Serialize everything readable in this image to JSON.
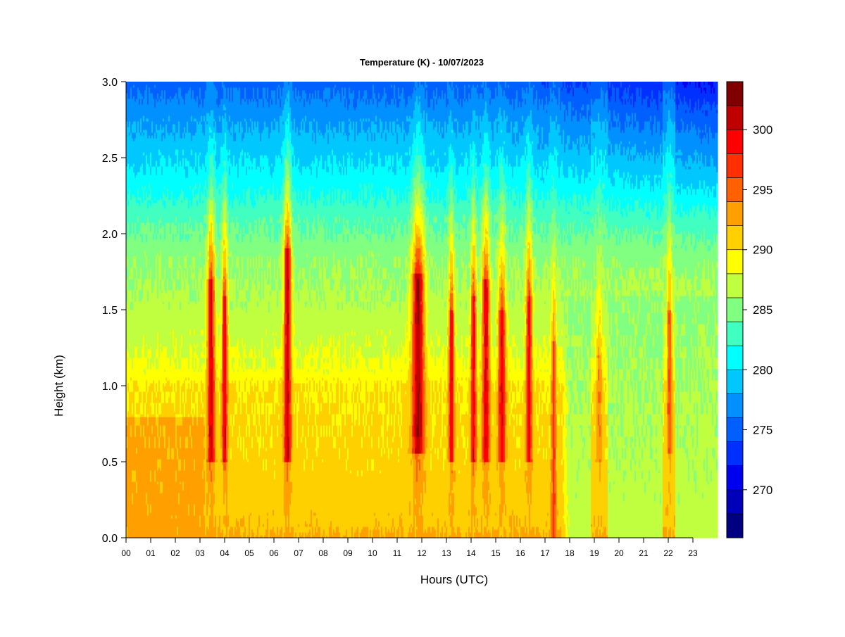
{
  "chart_data": {
    "type": "heatmap",
    "title": "Temperature (K) - 10/07/2023",
    "xlabel": "Hours (UTC)",
    "ylabel": "Height (km)",
    "xlim": [
      0,
      24
    ],
    "ylim": [
      0.0,
      3.0
    ],
    "x_ticks": [
      "00",
      "01",
      "02",
      "03",
      "04",
      "05",
      "06",
      "07",
      "08",
      "09",
      "10",
      "11",
      "12",
      "13",
      "14",
      "15",
      "16",
      "17",
      "18",
      "19",
      "20",
      "21",
      "22",
      "23"
    ],
    "y_ticks": [
      "0.0",
      "0.5",
      "1.0",
      "1.5",
      "2.0",
      "2.5",
      "3.0"
    ],
    "colorbar": {
      "range": [
        266,
        304
      ],
      "bin_width": 2.5,
      "tick_values": [
        270,
        275,
        280,
        285,
        290,
        295,
        300
      ],
      "tick_labels": [
        "270",
        "275",
        "280",
        "285",
        "290",
        "295",
        "300"
      ],
      "colors": [
        "#000080",
        "#0000b8",
        "#0000f0",
        "#0030ff",
        "#0060ff",
        "#0090ff",
        "#00c8ff",
        "#00ffff",
        "#40ffc0",
        "#80ff80",
        "#c0ff40",
        "#ffff00",
        "#ffd000",
        "#ffa000",
        "#ff6000",
        "#ff3000",
        "#ff0000",
        "#c00000",
        "#800000"
      ]
    },
    "background_profile": {
      "heights_km": [
        0.0,
        0.08,
        0.25,
        0.6,
        1.0,
        1.1,
        1.3,
        1.55,
        1.85,
        2.1,
        2.4,
        2.75,
        3.0
      ],
      "temperature_K": [
        292.5,
        291.5,
        291.0,
        290.5,
        290.0,
        288.5,
        287.5,
        286.5,
        285.5,
        283.5,
        280.5,
        277.5,
        275.0
      ]
    },
    "early_morning_warm_layer": {
      "x_range": [
        0,
        3.2
      ],
      "top_km": 0.8,
      "temperature_K": 292.8
    },
    "evening_cool_surface_layer": {
      "x_range": [
        17.7,
        24
      ],
      "top_km": 1.6,
      "temperature_K": 287.0
    },
    "warm_columns": [
      {
        "center_hour": 3.45,
        "width_h": 0.3,
        "peak_K": 300.5,
        "core_bottom_km": 0.5,
        "core_top_km": 1.7
      },
      {
        "center_hour": 4.0,
        "width_h": 0.22,
        "peak_K": 300.0,
        "core_bottom_km": 0.5,
        "core_top_km": 1.6
      },
      {
        "center_hour": 6.55,
        "width_h": 0.3,
        "peak_K": 301.0,
        "core_bottom_km": 0.5,
        "core_top_km": 1.9
      },
      {
        "center_hour": 11.85,
        "width_h": 0.5,
        "peak_K": 302.0,
        "core_bottom_km": 0.55,
        "core_top_km": 1.75
      },
      {
        "center_hour": 13.2,
        "width_h": 0.22,
        "peak_K": 300.0,
        "core_bottom_km": 0.5,
        "core_top_km": 1.5
      },
      {
        "center_hour": 14.1,
        "width_h": 0.22,
        "peak_K": 299.5,
        "core_bottom_km": 0.5,
        "core_top_km": 1.6
      },
      {
        "center_hour": 14.6,
        "width_h": 0.3,
        "peak_K": 300.0,
        "core_bottom_km": 0.5,
        "core_top_km": 1.7
      },
      {
        "center_hour": 15.25,
        "width_h": 0.3,
        "peak_K": 300.0,
        "core_bottom_km": 0.5,
        "core_top_km": 1.5
      },
      {
        "center_hour": 16.35,
        "width_h": 0.25,
        "peak_K": 299.5,
        "core_bottom_km": 0.5,
        "core_top_km": 1.6
      },
      {
        "center_hour": 17.35,
        "width_h": 0.18,
        "peak_K": 297.0,
        "core_bottom_km": 0.0,
        "core_top_km": 1.3
      },
      {
        "center_hour": 19.2,
        "width_h": 0.25,
        "peak_K": 294.0,
        "core_bottom_km": 0.5,
        "core_top_km": 1.2
      },
      {
        "center_hour": 22.05,
        "width_h": 0.2,
        "peak_K": 296.0,
        "core_bottom_km": 0.55,
        "core_top_km": 1.5
      }
    ]
  }
}
